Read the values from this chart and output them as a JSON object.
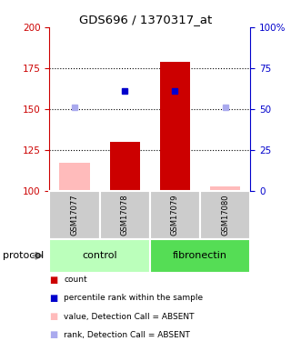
{
  "title": "GDS696 / 1370317_at",
  "samples": [
    "GSM17077",
    "GSM17078",
    "GSM17079",
    "GSM17080"
  ],
  "ylim_left": [
    100,
    200
  ],
  "ylim_right": [
    0,
    100
  ],
  "yticks_left": [
    100,
    125,
    150,
    175,
    200
  ],
  "yticks_right": [
    0,
    25,
    50,
    75,
    100
  ],
  "ytick_labels_right": [
    "0",
    "25",
    "50",
    "75",
    "100%"
  ],
  "bar_values": [
    null,
    130,
    179,
    null
  ],
  "bar_color": "#cc0000",
  "bar_absent_values": [
    117,
    null,
    null,
    103
  ],
  "bar_absent_color": "#ffbbbb",
  "rank_present": [
    null,
    161,
    161,
    null
  ],
  "rank_absent": [
    151,
    null,
    null,
    151
  ],
  "rank_present_color": "#0000cc",
  "rank_absent_color": "#aaaaee",
  "group_colors": {
    "control": "#bbffbb",
    "fibronectin": "#55dd55"
  },
  "dotted_yticks": [
    125,
    150,
    175
  ],
  "background_color": "#ffffff",
  "left_axis_color": "#cc0000",
  "right_axis_color": "#0000cc",
  "legend_items": [
    [
      "#cc0000",
      "count"
    ],
    [
      "#0000cc",
      "percentile rank within the sample"
    ],
    [
      "#ffbbbb",
      "value, Detection Call = ABSENT"
    ],
    [
      "#aaaaee",
      "rank, Detection Call = ABSENT"
    ]
  ]
}
